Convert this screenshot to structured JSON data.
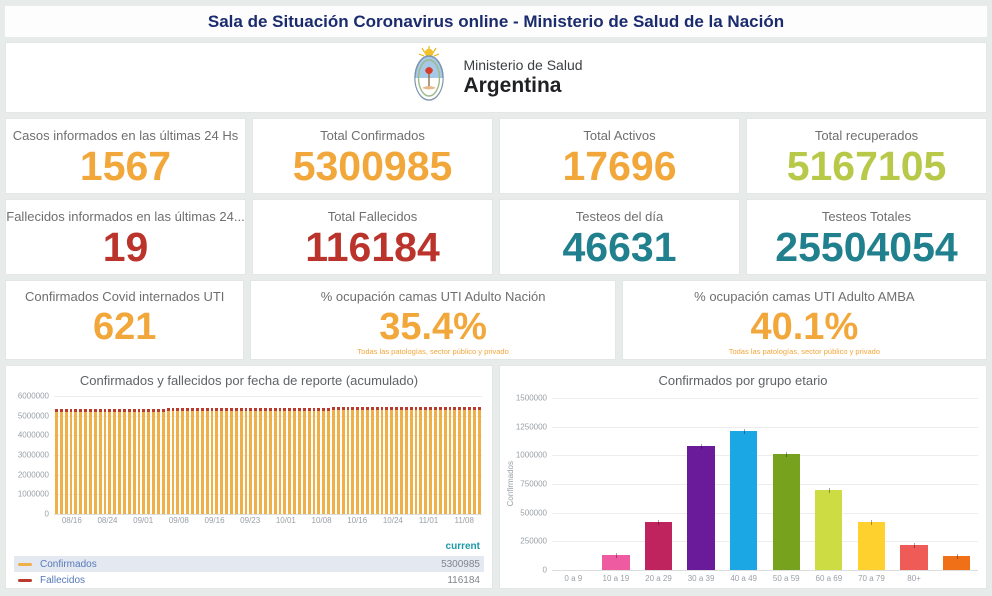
{
  "colors": {
    "navy": "#1b2c6e",
    "orange": "#f2a73b",
    "green": "#b8c94a",
    "red": "#bb342c",
    "teal": "#20808e"
  },
  "header": {
    "title": "Sala de Situación Coronavirus online - Ministerio de Salud de la Nación"
  },
  "logo": {
    "ministry": "Ministerio de Salud",
    "country": "Argentina"
  },
  "kpis": {
    "row1": [
      {
        "label": "Casos informados en las últimas 24 Hs",
        "value": "1567",
        "color": "orange"
      },
      {
        "label": "Total Confirmados",
        "value": "5300985",
        "color": "orange"
      },
      {
        "label": "Total Activos",
        "value": "17696",
        "color": "orange"
      },
      {
        "label": "Total recuperados",
        "value": "5167105",
        "color": "green"
      }
    ],
    "row2": [
      {
        "label": "Fallecidos informados en las últimas 24...",
        "value": "19",
        "color": "red"
      },
      {
        "label": "Total Fallecidos",
        "value": "116184",
        "color": "red"
      },
      {
        "label": "Testeos del día",
        "value": "46631",
        "color": "teal"
      },
      {
        "label": "Testeos Totales",
        "value": "25504054",
        "color": "teal"
      }
    ],
    "row3": [
      {
        "label": "Confirmados Covid internados UTI",
        "value": "621",
        "color": "orange"
      },
      {
        "label": "% ocupación camas UTI Adulto Nación",
        "value": "35.4%",
        "color": "orange",
        "footnote": "Todas las patologías, sector público y privado"
      },
      {
        "label": "% ocupación camas UTI Adulto AMBA",
        "value": "40.1%",
        "color": "orange",
        "footnote": "Todas las patologías, sector público y privado"
      }
    ]
  },
  "chart_data": [
    {
      "type": "bar",
      "stacked": true,
      "title": "Confirmados y fallecidos por fecha de reporte (acumulado)",
      "x_ticks": [
        "08/16",
        "08/24",
        "09/01",
        "09/08",
        "09/16",
        "09/23",
        "10/01",
        "10/08",
        "10/16",
        "10/24",
        "11/01",
        "11/08"
      ],
      "n_bars": 88,
      "ylim": [
        0,
        6000000
      ],
      "y_ticks": [
        "6000000",
        "5000000",
        "4000000",
        "3000000",
        "2000000",
        "1000000",
        "0"
      ],
      "legend_header": "current",
      "series": [
        {
          "name": "Confirmados",
          "color": "#f0b049",
          "current": "5300985",
          "values": [
            5178000,
            5191000,
            5203000,
            5215000,
            5227000,
            5239000,
            5251000,
            5262000,
            5272000,
            5282000,
            5292000,
            5300985
          ]
        },
        {
          "name": "Fallecidos",
          "color": "#bb3a2e",
          "current": "116184",
          "values": [
            112000,
            112600,
            113100,
            113600,
            114100,
            114500,
            114900,
            115300,
            115600,
            115900,
            116100,
            116184
          ]
        }
      ]
    },
    {
      "type": "bar",
      "title": "Confirmados por grupo etario",
      "ylabel": "Confirmados",
      "categories": [
        "0 a 9",
        "10 a 19",
        "20 a 29",
        "30 a 39",
        "40 a 49",
        "50 a 59",
        "60 a 69",
        "70 a 79",
        "80+"
      ],
      "values": [
        135000,
        415000,
        1080000,
        1210000,
        1010000,
        695000,
        420000,
        220000,
        125000
      ],
      "colors": [
        "#ef5ba1",
        "#c0245e",
        "#6a1b9a",
        "#1ba7e3",
        "#76a21e",
        "#cddc43",
        "#ffd12e",
        "#ef5b56",
        "#ef7017"
      ],
      "ylim": [
        0,
        1500000
      ],
      "y_ticks": [
        "1500000",
        "1250000",
        "1000000",
        "750000",
        "500000",
        "250000",
        "0"
      ],
      "grid": true,
      "legend": "none"
    }
  ]
}
